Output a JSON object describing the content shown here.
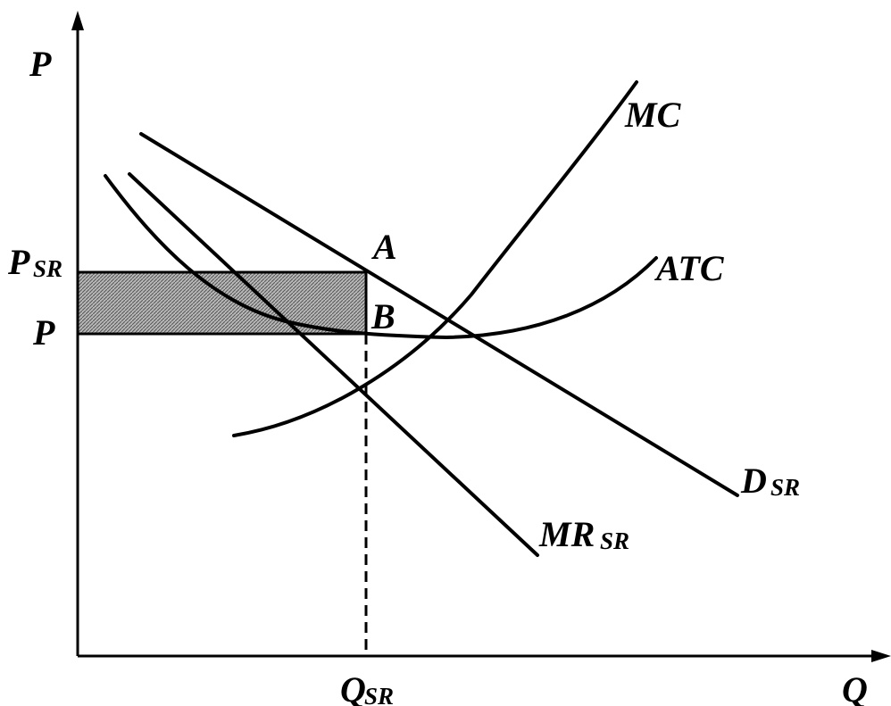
{
  "axes": {
    "y_label": "P",
    "x_label": "Q"
  },
  "price_labels": {
    "psr_main": "P",
    "psr_sub": "SR",
    "p": "P"
  },
  "quantity_label": {
    "main": "Q",
    "sub": "SR"
  },
  "points": {
    "a": "A",
    "b": "B"
  },
  "curves": {
    "mc": "MC",
    "atc": "ATC",
    "demand_main": "D",
    "demand_sub": "SR",
    "mr_main": "MR",
    "mr_sub": "SR"
  },
  "colors": {
    "ink": "#000000",
    "profit_fill": "#9a9a9a"
  }
}
